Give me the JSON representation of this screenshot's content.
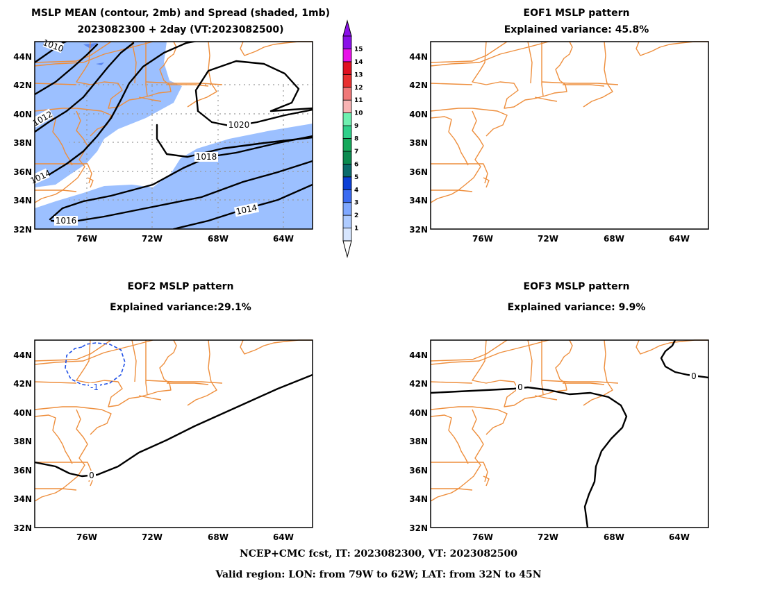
{
  "colors": {
    "coastline": "#EE8E3C",
    "spread_fill": "#9CC0FF",
    "spread_dark": "#5B86F0",
    "contour": "#000000",
    "negative_contour": "#1E4FE6",
    "grid": "#999999"
  },
  "panels": [
    {
      "id": "mean",
      "title_line1": "MSLP MEAN (contour, 2mb) and Spread (shaded, 1mb)",
      "title_line2": "2023082300 + 2day (VT:2023082500)",
      "contour_labels": [
        "1010",
        "1012",
        "1014",
        "1016",
        "1018",
        "1020",
        "1014"
      ]
    },
    {
      "id": "eof1",
      "title_line1": "EOF1 MSLP pattern",
      "title_line2": "Explained variance: 45.8%",
      "contour_labels": []
    },
    {
      "id": "eof2",
      "title_line1": "EOF2 MSLP pattern",
      "title_line2": "Explained variance:29.1%",
      "contour_labels": [
        "-1",
        "0"
      ]
    },
    {
      "id": "eof3",
      "title_line1": "EOF3 MSLP pattern",
      "title_line2": "Explained variance: 9.9%",
      "contour_labels": [
        "0",
        "0"
      ]
    }
  ],
  "axes": {
    "lat_labels": [
      "44N",
      "42N",
      "40N",
      "38N",
      "36N",
      "34N",
      "32N"
    ],
    "lon_labels": [
      "76W",
      "72W",
      "68W",
      "64W"
    ],
    "lat_range": [
      32,
      45
    ],
    "lon_range": [
      -78.5,
      -61.5
    ]
  },
  "colorbar": {
    "labels": [
      "1",
      "2",
      "3",
      "4",
      "5",
      "6",
      "7",
      "8",
      "9",
      "10",
      "11",
      "12",
      "13",
      "14",
      "15"
    ],
    "colors": [
      "#D7E6FF",
      "#AECBFF",
      "#7FA8FF",
      "#3A6BF2",
      "#0B3FD6",
      "#0A6B6B",
      "#0B8A4F",
      "#14A85A",
      "#2FD08A",
      "#6FF0B0",
      "#F8B4B4",
      "#F07878",
      "#E83030",
      "#E01020",
      "#E810E8",
      "#8A10E8"
    ]
  },
  "footer": {
    "line1": "NCEP+CMC fcst, IT: 2023082300, VT: 2023082500",
    "line2": "Valid region: LON: from 79W to 62W; LAT: from 32N to 45N"
  }
}
